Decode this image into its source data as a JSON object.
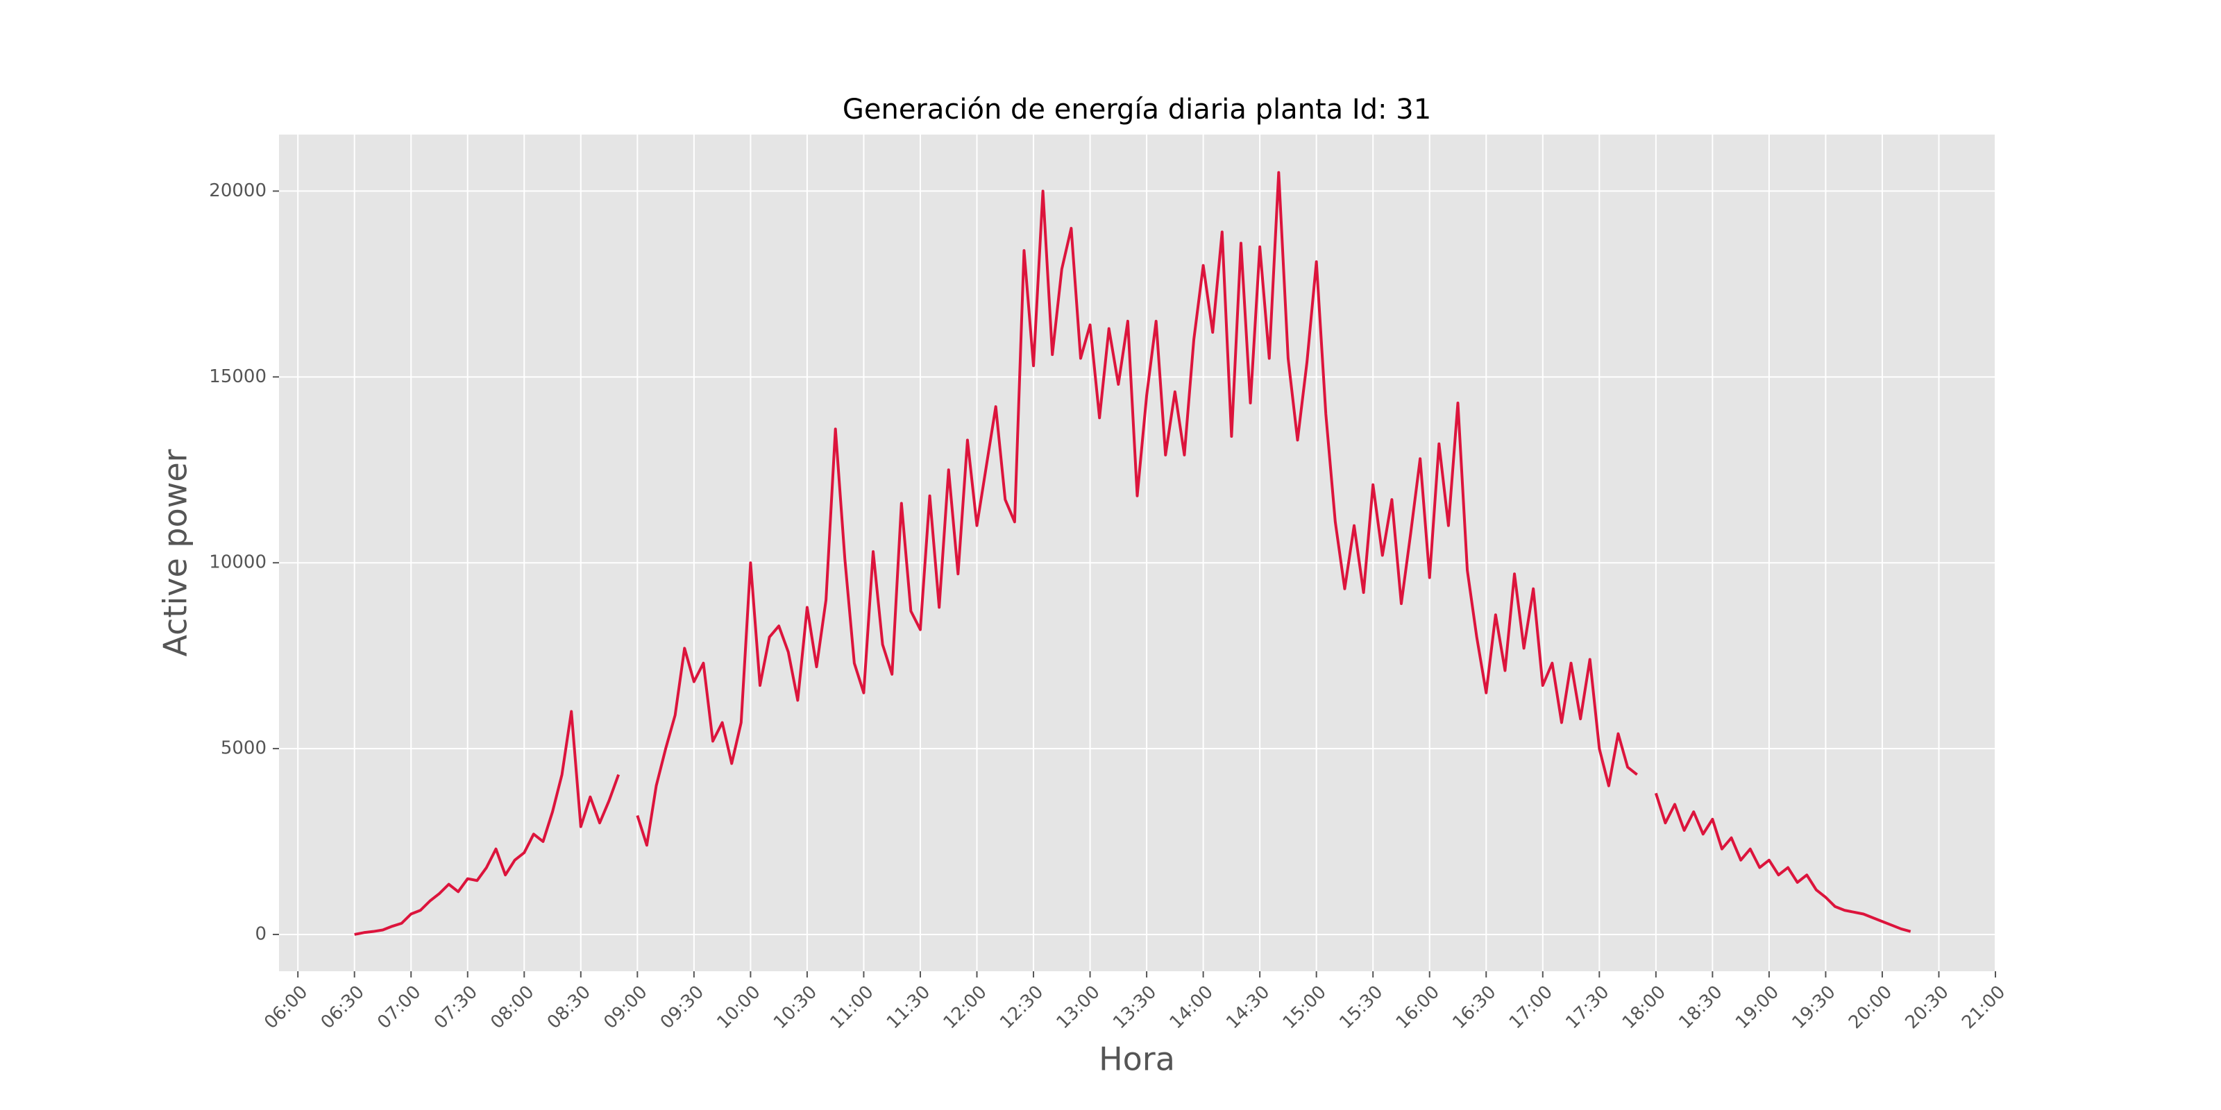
{
  "chart_data": {
    "type": "line",
    "title": "Generación de energía diaria planta Id: 31",
    "x_label": "Hora",
    "y_label": "Active power",
    "x": [
      "06:30",
      "06:35",
      "06:40",
      "06:45",
      "06:50",
      "06:55",
      "07:00",
      "07:05",
      "07:10",
      "07:15",
      "07:20",
      "07:25",
      "07:30",
      "07:35",
      "07:40",
      "07:45",
      "07:50",
      "07:55",
      "08:00",
      "08:05",
      "08:10",
      "08:15",
      "08:20",
      "08:25",
      "08:30",
      "08:35",
      "08:40",
      "08:45",
      "08:50",
      "08:55",
      "09:00",
      "09:05",
      "09:10",
      "09:15",
      "09:20",
      "09:25",
      "09:30",
      "09:35",
      "09:40",
      "09:45",
      "09:50",
      "09:55",
      "10:00",
      "10:05",
      "10:10",
      "10:15",
      "10:20",
      "10:25",
      "10:30",
      "10:35",
      "10:40",
      "10:45",
      "10:50",
      "10:55",
      "11:00",
      "11:05",
      "11:10",
      "11:15",
      "11:20",
      "11:25",
      "11:30",
      "11:35",
      "11:40",
      "11:45",
      "11:50",
      "11:55",
      "12:00",
      "12:05",
      "12:10",
      "12:15",
      "12:20",
      "12:25",
      "12:30",
      "12:35",
      "12:40",
      "12:45",
      "12:50",
      "12:55",
      "13:00",
      "13:05",
      "13:10",
      "13:15",
      "13:20",
      "13:25",
      "13:30",
      "13:35",
      "13:40",
      "13:45",
      "13:50",
      "13:55",
      "14:00",
      "14:05",
      "14:10",
      "14:15",
      "14:20",
      "14:25",
      "14:30",
      "14:35",
      "14:40",
      "14:45",
      "14:50",
      "14:55",
      "15:00",
      "15:05",
      "15:10",
      "15:15",
      "15:20",
      "15:25",
      "15:30",
      "15:35",
      "15:40",
      "15:45",
      "15:50",
      "15:55",
      "16:00",
      "16:05",
      "16:10",
      "16:15",
      "16:20",
      "16:25",
      "16:30",
      "16:35",
      "16:40",
      "16:45",
      "16:50",
      "16:55",
      "17:00",
      "17:05",
      "17:10",
      "17:15",
      "17:20",
      "17:25",
      "17:30",
      "17:35",
      "17:40",
      "17:45",
      "17:50",
      "17:55",
      "18:00",
      "18:05",
      "18:10",
      "18:15",
      "18:20",
      "18:25",
      "18:30",
      "18:35",
      "18:40",
      "18:45",
      "18:50",
      "18:55",
      "19:00",
      "19:05",
      "19:10",
      "19:15",
      "19:20",
      "19:25",
      "19:30",
      "19:35",
      "19:40",
      "19:45",
      "19:50",
      "19:55",
      "20:00",
      "20:05",
      "20:10",
      "20:15"
    ],
    "series": [
      {
        "name": "Active power",
        "color": "#dc143c",
        "values": [
          0,
          50,
          80,
          120,
          220,
          300,
          550,
          650,
          900,
          1100,
          1350,
          1150,
          1500,
          1450,
          1800,
          2300,
          1600,
          2000,
          2200,
          2700,
          2500,
          3300,
          4300,
          6000,
          2900,
          3700,
          3000,
          3600,
          4300,
          null,
          3200,
          2400,
          4000,
          5000,
          5900,
          7700,
          6800,
          7300,
          5200,
          5700,
          4600,
          5700,
          10000,
          6700,
          8000,
          8300,
          7600,
          6300,
          8800,
          7200,
          9000,
          13600,
          10100,
          7300,
          6500,
          10300,
          7800,
          7000,
          11600,
          8700,
          8200,
          11800,
          8800,
          12500,
          9700,
          13300,
          11000,
          12600,
          14200,
          11700,
          11100,
          18400,
          15300,
          20000,
          15600,
          17900,
          19000,
          15500,
          16400,
          13900,
          16300,
          14800,
          16500,
          11800,
          14500,
          16500,
          12900,
          14600,
          12900,
          16000,
          18000,
          16200,
          18900,
          13400,
          18600,
          14300,
          18500,
          15500,
          20500,
          15500,
          13300,
          15400,
          18100,
          14000,
          11100,
          9300,
          11000,
          9200,
          12100,
          10200,
          11700,
          8900,
          10800,
          12800,
          9600,
          13200,
          11000,
          14300,
          9800,
          8000,
          6500,
          8600,
          7100,
          9700,
          7700,
          9300,
          6700,
          7300,
          5700,
          7300,
          5800,
          7400,
          5000,
          4000,
          5400,
          4500,
          4300,
          null,
          3800,
          3000,
          3500,
          2800,
          3300,
          2700,
          3100,
          2300,
          2600,
          2000,
          2300,
          1800,
          2000,
          1600,
          1800,
          1400,
          1600,
          1200,
          1000,
          750,
          650,
          600,
          550,
          450,
          350,
          250,
          150,
          80
        ]
      }
    ],
    "xlim": [
      "05:50",
      "21:00"
    ],
    "xticks": [
      "06:00",
      "06:30",
      "07:00",
      "07:30",
      "08:00",
      "08:30",
      "09:00",
      "09:30",
      "10:00",
      "10:30",
      "11:00",
      "11:30",
      "12:00",
      "12:30",
      "13:00",
      "13:30",
      "14:00",
      "14:30",
      "15:00",
      "15:30",
      "16:00",
      "16:30",
      "17:00",
      "17:30",
      "18:00",
      "18:30",
      "19:00",
      "19:30",
      "20:00",
      "20:30",
      "21:00"
    ],
    "ylim": [
      -990,
      21520
    ],
    "yticks": [
      0,
      5000,
      10000,
      15000,
      20000
    ],
    "grid": true
  }
}
